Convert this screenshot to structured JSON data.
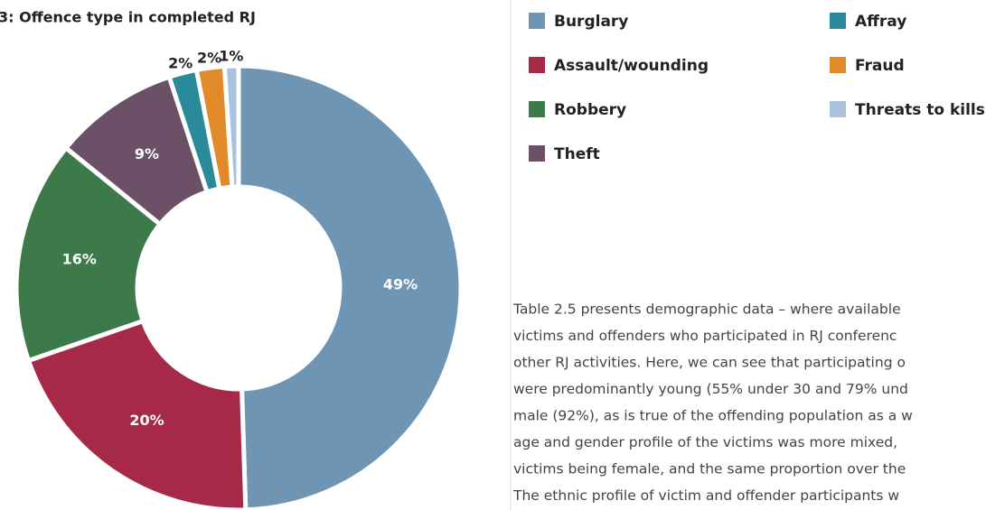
{
  "chart_data": {
    "type": "donut",
    "title": "3: Offence type in completed RJ",
    "categories": [
      "Burglary",
      "Assault/wounding",
      "Robbery",
      "Theft",
      "Affray",
      "Fraud",
      "Threats to kills"
    ],
    "values": [
      49,
      20,
      16,
      9,
      2,
      2,
      1
    ],
    "value_labels": [
      "49%",
      "20%",
      "16%",
      "9%",
      "2%",
      "2%",
      "1%"
    ],
    "colors": [
      "#6f95b4",
      "#a62a48",
      "#3d7a4a",
      "#6b5068",
      "#2a8a9a",
      "#e08a2a",
      "#a9c3dd"
    ]
  },
  "body_text": [
    "Table 2.5 presents demographic data – where available",
    "victims and offenders who participated in RJ conferenc",
    "other RJ activities. Here, we can see that participating o",
    "were predominantly young (55% under 30 and 79% und",
    "male (92%), as is true of the offending population as a w",
    "age and gender profile of the victims was more mixed,",
    "victims being female, and the same proportion over the",
    "The ethnic profile of victim and offender participants w"
  ]
}
